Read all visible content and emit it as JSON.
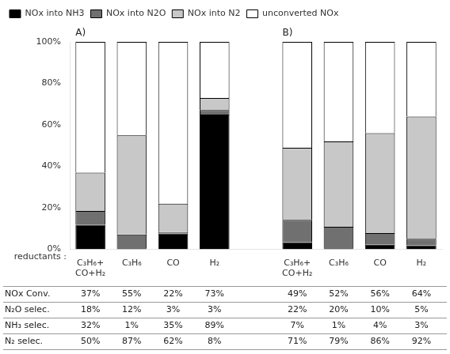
{
  "chart_data": {
    "type": "bar",
    "stacked": true,
    "categories": [
      "C₃H₆+\nCO+H₂",
      "C₃H₆",
      "CO",
      "H₂",
      null,
      "C₃H₆+\nCO+H₂",
      "C₃H₆",
      "CO",
      "H₂"
    ],
    "series": [
      {
        "name": "NOx into NH3",
        "color": "#000000",
        "values": [
          0.1184,
          0.0055,
          0.077,
          0.6497,
          null,
          0.0343,
          0.0052,
          0.0224,
          0.0192
        ]
      },
      {
        "name": "NOx into N2O",
        "color": "#707070",
        "values": [
          0.0666,
          0.066,
          0.0066,
          0.0219,
          null,
          0.1078,
          0.104,
          0.056,
          0.032
        ]
      },
      {
        "name": "NOx into N2",
        "color": "#c8c8c8",
        "values": [
          0.185,
          0.4785,
          0.1364,
          0.0584,
          null,
          0.3479,
          0.4108,
          0.4816,
          0.5888
        ]
      },
      {
        "name": "unconverted NOx",
        "color": "#ffffff",
        "values": [
          0.63,
          0.45,
          0.78,
          0.27,
          null,
          0.51,
          0.48,
          0.44,
          0.36
        ]
      }
    ],
    "ylim": [
      0,
      1
    ],
    "yticks": [
      {
        "value": 0,
        "label": "0%"
      },
      {
        "value": 0.2,
        "label": "20%"
      },
      {
        "value": 0.4,
        "label": "40%"
      },
      {
        "value": 0.6,
        "label": "60%"
      },
      {
        "value": 0.8,
        "label": "80%"
      },
      {
        "value": 1,
        "label": "100%"
      }
    ],
    "grid": false,
    "legend": "upper left",
    "xlabel": "reductants :",
    "annotations": [
      "A)",
      "B)"
    ],
    "table": {
      "row_labels": [
        "NOx Conv.",
        "N₂O selec.",
        "NH₃ selec.",
        "N₂ selec."
      ],
      "cells": [
        [
          "37%",
          "55%",
          "22%",
          "73%",
          null,
          "49%",
          "52%",
          "56%",
          "64%"
        ],
        [
          "18%",
          "12%",
          "3%",
          "3%",
          null,
          "22%",
          "20%",
          "10%",
          "5%"
        ],
        [
          "32%",
          "1%",
          "35%",
          "89%",
          null,
          "7%",
          "1%",
          "4%",
          "3%"
        ],
        [
          "50%",
          "87%",
          "62%",
          "8%",
          null,
          "71%",
          "79%",
          "86%",
          "92%"
        ]
      ]
    }
  }
}
